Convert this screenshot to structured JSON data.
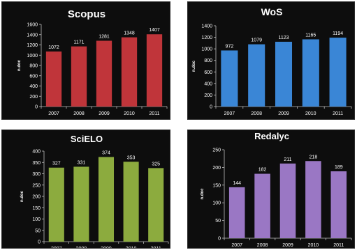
{
  "chart_data": [
    {
      "type": "bar",
      "title": "Scopus",
      "ylabel": "n.doc",
      "categories": [
        "2007",
        "2008",
        "2009",
        "2010",
        "2011"
      ],
      "values": [
        1072,
        1171,
        1281,
        1348,
        1407
      ],
      "value_labels": [
        "1072",
        "1171",
        "1281",
        "1348",
        "1407"
      ],
      "ylim": [
        0,
        1600
      ],
      "yticks": [
        "0",
        "200",
        "400",
        "600",
        "800",
        "1000",
        "1200",
        "1400",
        "1600"
      ],
      "color": "#c0353a",
      "background": "#0d0d0d"
    },
    {
      "type": "bar",
      "title": "WoS",
      "ylabel": "n.doc",
      "categories": [
        "2007",
        "2008",
        "2009",
        "2010",
        "2011"
      ],
      "values": [
        972,
        1079,
        1123,
        1165,
        1194
      ],
      "value_labels": [
        "972",
        "1079",
        "1123",
        "1165",
        "1194"
      ],
      "ylim": [
        0,
        1400
      ],
      "yticks": [
        "0",
        "200",
        "400",
        "600",
        "800",
        "1000",
        "1200",
        "1400"
      ],
      "color": "#3a86d6",
      "background": "#0d0d0d"
    },
    {
      "type": "bar",
      "title": "SciELO",
      "ylabel": "n.doc",
      "categories": [
        "2007",
        "2008",
        "2009",
        "2010",
        "2011"
      ],
      "values": [
        327,
        331,
        374,
        353,
        325
      ],
      "value_labels": [
        "327",
        "331",
        "374",
        "353",
        "325"
      ],
      "ylim": [
        0,
        400
      ],
      "yticks": [
        "0",
        "50",
        "100",
        "150",
        "200",
        "250",
        "300",
        "350",
        "400"
      ],
      "color": "#8cab3e",
      "background": "#0d0d0d"
    },
    {
      "type": "bar",
      "title": "Redalyc",
      "ylabel": "n.doc",
      "categories": [
        "2007",
        "2008",
        "2009",
        "2010",
        "2011"
      ],
      "values": [
        144,
        182,
        211,
        218,
        189
      ],
      "value_labels": [
        "144",
        "182",
        "211",
        "218",
        "189"
      ],
      "ylim": [
        0,
        250
      ],
      "yticks": [
        "0",
        "50",
        "100",
        "150",
        "200",
        "250"
      ],
      "color": "#9a77c4",
      "background": "#0d0d0d"
    }
  ]
}
